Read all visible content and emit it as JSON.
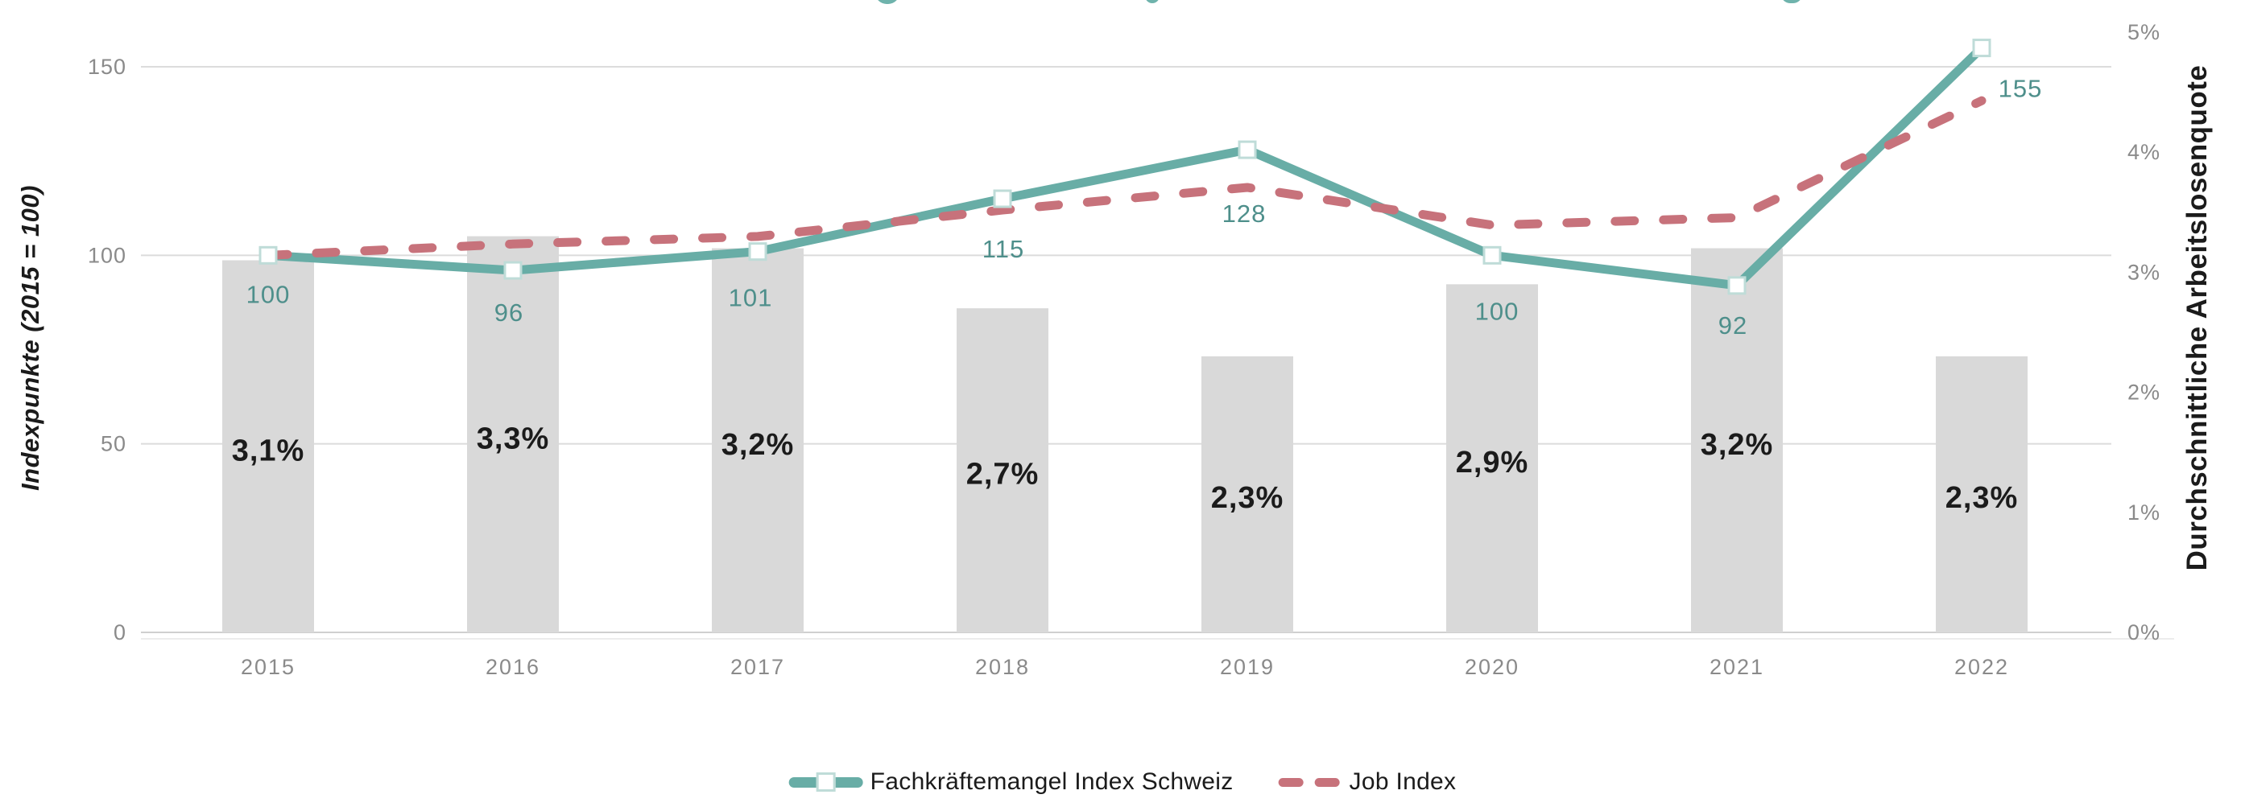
{
  "chart_data": {
    "type": "combo",
    "categories": [
      "2015",
      "2016",
      "2017",
      "2018",
      "2019",
      "2020",
      "2021",
      "2022"
    ],
    "series": [
      {
        "name": "Fachkräftemangel Index Schweiz",
        "type": "line",
        "style": "solid",
        "axis": "left",
        "marker": "white-square",
        "color": "#68ADA6",
        "values": [
          100,
          96,
          101,
          115,
          128,
          100,
          92,
          155
        ],
        "point_labels": [
          "100",
          "96",
          "101",
          "115",
          "128",
          "100",
          "92",
          "155"
        ]
      },
      {
        "name": "Job Index",
        "type": "line",
        "style": "dashed",
        "axis": "left",
        "color": "#C7727B",
        "estimated": true,
        "values": [
          100,
          103,
          105,
          112,
          118,
          108,
          110,
          141
        ]
      },
      {
        "name": "Durchschnittliche Arbeitslosenquote",
        "type": "bar",
        "axis": "right",
        "color": "#D9D9D9",
        "values": [
          3.1,
          3.3,
          3.2,
          2.7,
          2.3,
          2.9,
          3.2,
          2.3
        ],
        "bar_labels": [
          "3,1%",
          "3,3%",
          "3,2%",
          "2,7%",
          "2,3%",
          "2,9%",
          "3,2%",
          "2,3%"
        ]
      }
    ],
    "left_axis": {
      "title": "Indexpunkte (2015 = 100)",
      "ticks": [
        "0",
        "50",
        "100",
        "150"
      ],
      "range": [
        0,
        150
      ]
    },
    "right_axis": {
      "title": "Durchschnittliche Arbeitslosenquote",
      "ticks": [
        "0%",
        "1%",
        "2%",
        "3%",
        "4%",
        "5%"
      ],
      "range": [
        0,
        5
      ]
    },
    "legend": [
      {
        "label": "Fachkräftemangel Index Schweiz",
        "swatch": "teal-line-with-marker"
      },
      {
        "label": "Job Index",
        "swatch": "red-dashes"
      }
    ],
    "grid": true
  },
  "colors": {
    "teal_line": "#68ADA6",
    "teal_label_text": "#4E8F8B",
    "marker_border": "#BFDCD8",
    "red_line": "#C7727B",
    "bar_fill": "#D9D9D9",
    "gridline": "#DCDCDC",
    "tick_text": "#8A8A8A",
    "black_text": "#1B1B1B"
  }
}
